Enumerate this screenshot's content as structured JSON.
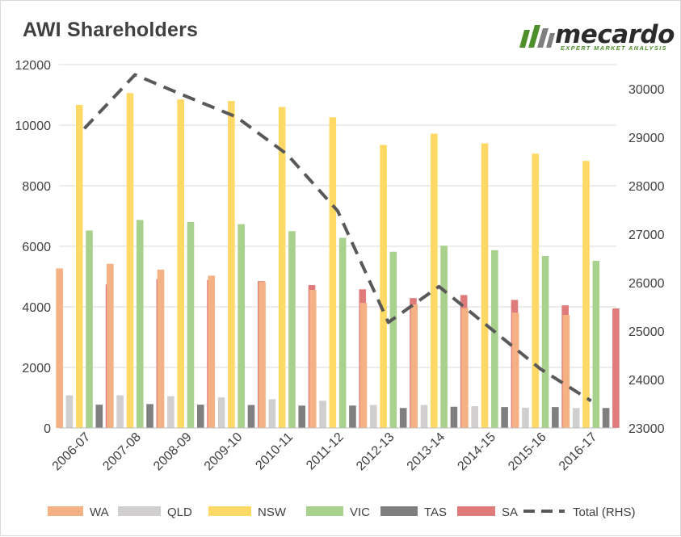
{
  "logo": {
    "wordmark": "mecardo",
    "tagline": "EXPERT MARKET ANALYSIS",
    "green": "#4e8f2c",
    "grey": "#7f7f7f"
  },
  "chart_data": {
    "type": "bar",
    "title": "AWI Shareholders",
    "categories": [
      "2006-07",
      "2007-08",
      "2008-09",
      "2009-10",
      "2010-11",
      "2011-12",
      "2012-13",
      "2013-14",
      "2014-15",
      "2015-16",
      "2016-17"
    ],
    "ylim": [
      0,
      12000
    ],
    "yticks": [
      0,
      2000,
      4000,
      6000,
      8000,
      10000,
      12000
    ],
    "y2lim": [
      23000,
      30500
    ],
    "y2ticks": [
      23000,
      24000,
      25000,
      26000,
      27000,
      28000,
      29000,
      30000
    ],
    "grid": true,
    "legend_position": "bottom",
    "series": [
      {
        "name": "WA",
        "color": "#f4b183",
        "values": [
          5270,
          5420,
          5230,
          5030,
          4830,
          4560,
          4130,
          4080,
          3960,
          3810,
          3730
        ]
      },
      {
        "name": "QLD",
        "color": "#d0cece",
        "values": [
          1080,
          1080,
          1050,
          1010,
          950,
          900,
          760,
          760,
          720,
          670,
          660
        ]
      },
      {
        "name": "NSW",
        "color": "#ffd966",
        "values": [
          10670,
          11060,
          10850,
          10800,
          10600,
          10260,
          9350,
          9720,
          9400,
          9060,
          8820
        ]
      },
      {
        "name": "VIC",
        "color": "#a9d18e",
        "values": [
          6520,
          6870,
          6800,
          6730,
          6500,
          6280,
          5820,
          6020,
          5870,
          5680,
          5520
        ]
      },
      {
        "name": "TAS",
        "color": "#7f7f7f",
        "values": [
          770,
          790,
          770,
          760,
          740,
          740,
          660,
          700,
          690,
          690,
          660
        ]
      },
      {
        "name": "SA",
        "color": "#e07b7b",
        "values": [
          4740,
          4920,
          4890,
          4850,
          4720,
          4580,
          4290,
          4390,
          4230,
          4050,
          3950
        ]
      }
    ],
    "line_series": {
      "name": "Total (RHS)",
      "axis": "right",
      "style": "dashed",
      "color": "#595959",
      "values": [
        29180,
        30290,
        29850,
        29420,
        28650,
        27480,
        25180,
        25920,
        25070,
        24220,
        23560
      ]
    }
  }
}
